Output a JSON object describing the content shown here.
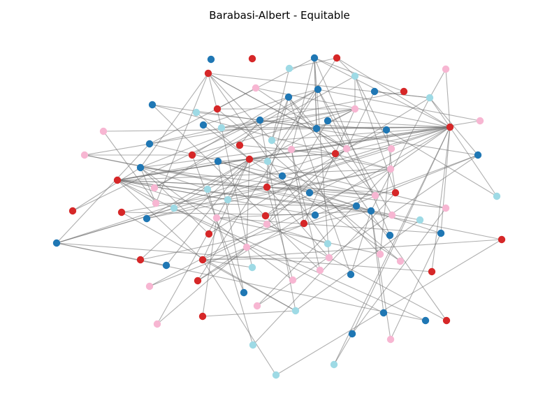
{
  "title": "Barabasi-Albert - Equitable",
  "palette": {
    "blue": "#1f77b4",
    "red": "#d62728",
    "pink": "#f7b6d2",
    "cyan": "#9edae5",
    "edge": "#6e6e6e"
  },
  "graph": {
    "nodes": [
      {
        "id": 0,
        "color": "blue"
      },
      {
        "id": 1,
        "color": "red"
      },
      {
        "id": 2,
        "color": "blue"
      },
      {
        "id": 3,
        "color": "red"
      },
      {
        "id": 4,
        "color": "red"
      },
      {
        "id": 5,
        "color": "cyan"
      },
      {
        "id": 6,
        "color": "cyan"
      },
      {
        "id": 7,
        "color": "pink"
      },
      {
        "id": 8,
        "color": "pink"
      },
      {
        "id": 9,
        "color": "blue"
      },
      {
        "id": 10,
        "color": "blue"
      },
      {
        "id": 11,
        "color": "red"
      },
      {
        "id": 12,
        "color": "blue"
      },
      {
        "id": 13,
        "color": "cyan"
      },
      {
        "id": 14,
        "color": "blue"
      },
      {
        "id": 15,
        "color": "red"
      },
      {
        "id": 16,
        "color": "pink"
      },
      {
        "id": 17,
        "color": "blue"
      },
      {
        "id": 18,
        "color": "cyan"
      },
      {
        "id": 19,
        "color": "cyan"
      },
      {
        "id": 20,
        "color": "blue"
      },
      {
        "id": 21,
        "color": "blue"
      },
      {
        "id": 22,
        "color": "pink"
      },
      {
        "id": 23,
        "color": "blue"
      },
      {
        "id": 24,
        "color": "blue"
      },
      {
        "id": 25,
        "color": "red"
      },
      {
        "id": 26,
        "color": "pink"
      },
      {
        "id": 27,
        "color": "red"
      },
      {
        "id": 28,
        "color": "blue"
      },
      {
        "id": 29,
        "color": "cyan"
      },
      {
        "id": 30,
        "color": "pink"
      },
      {
        "id": 31,
        "color": "pink"
      },
      {
        "id": 32,
        "color": "red"
      },
      {
        "id": 33,
        "color": "pink"
      },
      {
        "id": 34,
        "color": "red"
      },
      {
        "id": 35,
        "color": "pink"
      },
      {
        "id": 36,
        "color": "blue"
      },
      {
        "id": 37,
        "color": "blue"
      },
      {
        "id": 38,
        "color": "red"
      },
      {
        "id": 39,
        "color": "cyan"
      },
      {
        "id": 40,
        "color": "blue"
      },
      {
        "id": 41,
        "color": "pink"
      },
      {
        "id": 42,
        "color": "red"
      },
      {
        "id": 43,
        "color": "blue"
      },
      {
        "id": 44,
        "color": "red"
      },
      {
        "id": 45,
        "color": "pink"
      },
      {
        "id": 46,
        "color": "cyan"
      },
      {
        "id": 47,
        "color": "blue"
      },
      {
        "id": 48,
        "color": "red"
      },
      {
        "id": 49,
        "color": "pink"
      },
      {
        "id": 50,
        "color": "cyan"
      },
      {
        "id": 51,
        "color": "red"
      },
      {
        "id": 52,
        "color": "cyan"
      },
      {
        "id": 53,
        "color": "pink"
      },
      {
        "id": 54,
        "color": "cyan"
      },
      {
        "id": 55,
        "color": "blue"
      },
      {
        "id": 56,
        "color": "blue"
      },
      {
        "id": 57,
        "color": "pink"
      },
      {
        "id": 58,
        "color": "red"
      },
      {
        "id": 59,
        "color": "pink"
      },
      {
        "id": 60,
        "color": "blue"
      },
      {
        "id": 61,
        "color": "red"
      },
      {
        "id": 62,
        "color": "pink"
      },
      {
        "id": 63,
        "color": "blue"
      },
      {
        "id": 64,
        "color": "cyan"
      },
      {
        "id": 65,
        "color": "red"
      },
      {
        "id": 66,
        "color": "pink"
      },
      {
        "id": 67,
        "color": "blue"
      },
      {
        "id": 68,
        "color": "red"
      },
      {
        "id": 69,
        "color": "blue"
      },
      {
        "id": 70,
        "color": "red"
      },
      {
        "id": 71,
        "color": "pink"
      },
      {
        "id": 72,
        "color": "blue"
      },
      {
        "id": 73,
        "color": "cyan"
      },
      {
        "id": 74,
        "color": "pink"
      },
      {
        "id": 75,
        "color": "red"
      },
      {
        "id": 76,
        "color": "pink"
      },
      {
        "id": 77,
        "color": "pink"
      },
      {
        "id": 78,
        "color": "blue"
      },
      {
        "id": 79,
        "color": "red"
      },
      {
        "id": 80,
        "color": "pink"
      },
      {
        "id": 81,
        "color": "cyan"
      },
      {
        "id": 82,
        "color": "red"
      },
      {
        "id": 83,
        "color": "pink"
      },
      {
        "id": 84,
        "color": "blue"
      },
      {
        "id": 85,
        "color": "red"
      },
      {
        "id": 86,
        "color": "pink"
      },
      {
        "id": 87,
        "color": "blue"
      },
      {
        "id": 88,
        "color": "cyan"
      },
      {
        "id": 89,
        "color": "pink"
      },
      {
        "id": 90,
        "color": "blue"
      },
      {
        "id": 91,
        "color": "pink"
      },
      {
        "id": 92,
        "color": "red"
      },
      {
        "id": 93,
        "color": "blue"
      },
      {
        "id": 94,
        "color": "red"
      },
      {
        "id": 95,
        "color": "blue"
      },
      {
        "id": 96,
        "color": "pink"
      },
      {
        "id": 97,
        "color": "cyan"
      },
      {
        "id": 98,
        "color": "cyan"
      },
      {
        "id": 99,
        "color": "cyan"
      }
    ],
    "edges": [
      [
        2,
        77
      ],
      [
        2,
        28
      ],
      [
        2,
        21
      ],
      [
        2,
        25
      ],
      [
        3,
        6
      ],
      [
        3,
        39
      ],
      [
        3,
        25
      ],
      [
        4,
        74
      ],
      [
        4,
        53
      ],
      [
        4,
        35
      ],
      [
        5,
        3
      ],
      [
        5,
        29
      ],
      [
        6,
        16
      ],
      [
        6,
        30
      ],
      [
        7,
        13
      ],
      [
        7,
        25
      ],
      [
        8,
        25
      ],
      [
        8,
        35
      ],
      [
        9,
        17
      ],
      [
        9,
        12
      ],
      [
        10,
        13
      ],
      [
        10,
        35
      ],
      [
        11,
        2
      ],
      [
        11,
        19
      ],
      [
        12,
        49
      ],
      [
        12,
        44
      ],
      [
        13,
        25
      ],
      [
        13,
        4
      ],
      [
        14,
        41
      ],
      [
        14,
        21
      ],
      [
        15,
        16
      ],
      [
        15,
        8
      ],
      [
        16,
        21
      ],
      [
        16,
        19
      ],
      [
        17,
        24
      ],
      [
        17,
        40
      ],
      [
        18,
        17
      ],
      [
        18,
        38
      ],
      [
        19,
        25
      ],
      [
        19,
        4
      ],
      [
        20,
        49
      ],
      [
        20,
        25
      ],
      [
        21,
        25
      ],
      [
        21,
        2
      ],
      [
        22,
        53
      ],
      [
        22,
        25
      ],
      [
        23,
        12
      ],
      [
        23,
        38
      ],
      [
        24,
        35
      ],
      [
        24,
        48
      ],
      [
        25,
        38
      ],
      [
        25,
        42
      ],
      [
        26,
        9
      ],
      [
        26,
        42
      ],
      [
        27,
        34
      ],
      [
        27,
        17
      ],
      [
        28,
        19
      ],
      [
        28,
        72
      ],
      [
        29,
        25
      ],
      [
        29,
        12
      ],
      [
        30,
        35
      ],
      [
        30,
        44
      ],
      [
        31,
        16
      ],
      [
        31,
        32
      ],
      [
        32,
        12
      ],
      [
        32,
        16
      ],
      [
        33,
        41
      ],
      [
        33,
        2
      ],
      [
        34,
        25
      ],
      [
        34,
        38
      ],
      [
        35,
        9
      ],
      [
        35,
        4
      ],
      [
        36,
        13
      ],
      [
        36,
        17
      ],
      [
        37,
        34
      ],
      [
        37,
        42
      ],
      [
        38,
        42
      ],
      [
        38,
        79
      ],
      [
        39,
        38
      ],
      [
        39,
        44
      ],
      [
        40,
        25
      ],
      [
        40,
        4
      ],
      [
        41,
        25
      ],
      [
        41,
        42
      ],
      [
        42,
        44
      ],
      [
        42,
        79
      ],
      [
        43,
        28
      ],
      [
        43,
        49
      ],
      [
        44,
        25
      ],
      [
        44,
        63
      ],
      [
        45,
        6
      ],
      [
        45,
        9
      ],
      [
        46,
        40
      ],
      [
        46,
        16
      ],
      [
        47,
        37
      ],
      [
        47,
        55
      ],
      [
        48,
        42
      ],
      [
        48,
        6
      ],
      [
        49,
        44
      ],
      [
        49,
        40
      ],
      [
        50,
        25
      ],
      [
        50,
        24
      ],
      [
        51,
        40
      ],
      [
        51,
        17
      ],
      [
        52,
        41
      ],
      [
        52,
        42
      ],
      [
        53,
        42
      ],
      [
        53,
        40
      ],
      [
        54,
        72
      ],
      [
        54,
        38
      ],
      [
        55,
        53
      ],
      [
        55,
        56
      ],
      [
        56,
        42
      ],
      [
        56,
        13
      ],
      [
        57,
        38
      ],
      [
        57,
        44
      ],
      [
        58,
        60
      ],
      [
        58,
        44
      ],
      [
        59,
        56
      ],
      [
        59,
        67
      ],
      [
        60,
        42
      ],
      [
        60,
        36
      ],
      [
        61,
        25
      ],
      [
        61,
        35
      ],
      [
        62,
        42
      ],
      [
        62,
        9
      ],
      [
        63,
        38
      ],
      [
        63,
        41
      ],
      [
        64,
        31
      ],
      [
        64,
        88
      ],
      [
        65,
        33
      ],
      [
        65,
        16
      ],
      [
        66,
        20
      ],
      [
        66,
        35
      ],
      [
        67,
        37
      ],
      [
        67,
        25
      ],
      [
        68,
        40
      ],
      [
        68,
        13
      ],
      [
        69,
        55
      ],
      [
        69,
        2
      ],
      [
        70,
        79
      ],
      [
        70,
        31
      ],
      [
        71,
        38
      ],
      [
        71,
        85
      ],
      [
        72,
        25
      ],
      [
        72,
        35
      ],
      [
        73,
        42
      ],
      [
        73,
        4
      ],
      [
        74,
        59
      ],
      [
        74,
        30
      ],
      [
        75,
        38
      ],
      [
        75,
        56
      ],
      [
        76,
        15
      ],
      [
        76,
        38
      ],
      [
        77,
        79
      ],
      [
        77,
        44
      ],
      [
        78,
        72
      ],
      [
        78,
        38
      ],
      [
        79,
        41
      ],
      [
        79,
        88
      ],
      [
        80,
        14
      ],
      [
        80,
        33
      ],
      [
        81,
        79
      ],
      [
        81,
        19
      ],
      [
        82,
        72
      ],
      [
        82,
        25
      ],
      [
        83,
        40
      ],
      [
        83,
        44
      ],
      [
        84,
        56
      ],
      [
        84,
        12
      ],
      [
        85,
        25
      ],
      [
        85,
        9
      ],
      [
        86,
        36
      ],
      [
        86,
        66
      ],
      [
        87,
        37
      ],
      [
        87,
        32
      ],
      [
        88,
        17
      ],
      [
        88,
        58
      ],
      [
        89,
        41
      ],
      [
        89,
        36
      ],
      [
        90,
        42
      ],
      [
        90,
        56
      ],
      [
        91,
        38
      ],
      [
        91,
        71
      ],
      [
        92,
        59
      ],
      [
        92,
        88
      ],
      [
        93,
        72
      ],
      [
        93,
        54
      ],
      [
        94,
        66
      ],
      [
        94,
        12
      ],
      [
        95,
        57
      ],
      [
        95,
        25
      ],
      [
        96,
        67
      ],
      [
        96,
        56
      ],
      [
        97,
        46
      ],
      [
        97,
        48
      ],
      [
        98,
        95
      ],
      [
        98,
        25
      ],
      [
        99,
        70
      ],
      [
        99,
        79
      ]
    ]
  }
}
